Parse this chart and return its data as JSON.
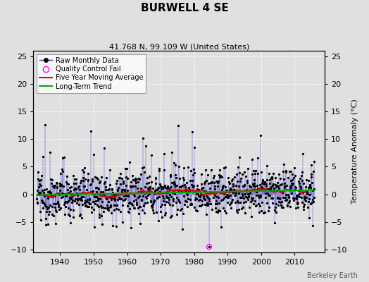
{
  "title": "BURWELL 4 SE",
  "subtitle": "41.768 N, 99.109 W (United States)",
  "ylabel": "Temperature Anomaly (°C)",
  "watermark": "Berkeley Earth",
  "xlim": [
    1932,
    2019
  ],
  "ylim": [
    -10.5,
    26
  ],
  "yticks_left": [
    -10,
    -5,
    0,
    5,
    10,
    15,
    20,
    25
  ],
  "yticks_right": [
    -10,
    -5,
    0,
    5,
    10,
    15,
    20,
    25
  ],
  "xticks": [
    1940,
    1950,
    1960,
    1970,
    1980,
    1990,
    2000,
    2010
  ],
  "bg_color": "#e0e0e0",
  "plot_bg_color": "#e0e0e0",
  "raw_line_color": "#3333cc",
  "raw_marker_color": "#000000",
  "moving_avg_color": "#dd0000",
  "trend_color": "#00aa00",
  "qc_fail_color": "#ff00ff",
  "seed": 12345,
  "n_years": 83,
  "start_year": 1933,
  "qc_x": 1984.5,
  "qc_y": -9.5,
  "noise_std": 2.2,
  "trend_slope": 0.012,
  "trend_intercept": -0.3
}
